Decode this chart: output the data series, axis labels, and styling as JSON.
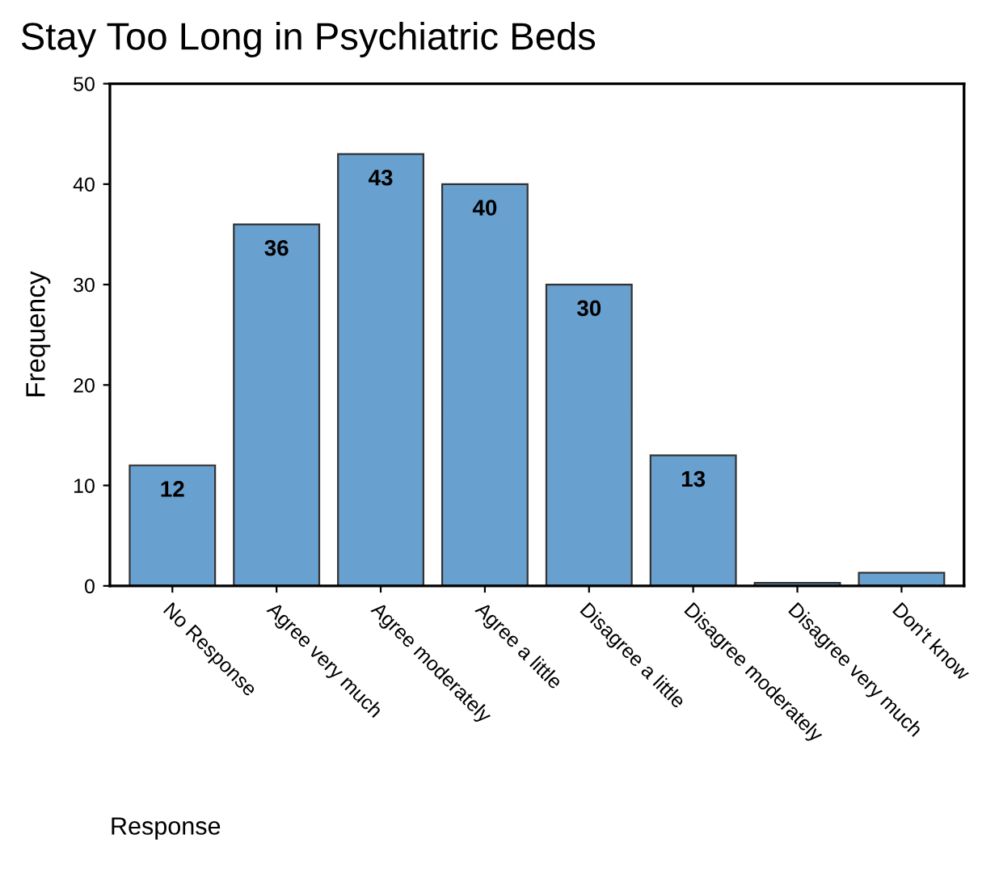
{
  "chart_data": {
    "type": "bar",
    "title": "Stay Too Long in Psychiatric Beds",
    "xlabel": "Response",
    "ylabel": "Frequency",
    "categories": [
      "No Response",
      "Agree very much",
      "Agree moderately",
      "Agree a little",
      "Disagree a little",
      "Disagree moderately",
      "Disagree very much",
      "Don't know"
    ],
    "values": [
      12,
      36,
      43,
      40,
      30,
      13,
      0.3,
      1.3
    ],
    "value_labels": [
      "12",
      "36",
      "43",
      "40",
      "30",
      "13",
      null,
      null
    ],
    "color": "#68a0cf",
    "ylim": [
      0,
      50
    ],
    "yticks": [
      0,
      10,
      20,
      30,
      40,
      50
    ],
    "grid": false,
    "legend": false
  }
}
